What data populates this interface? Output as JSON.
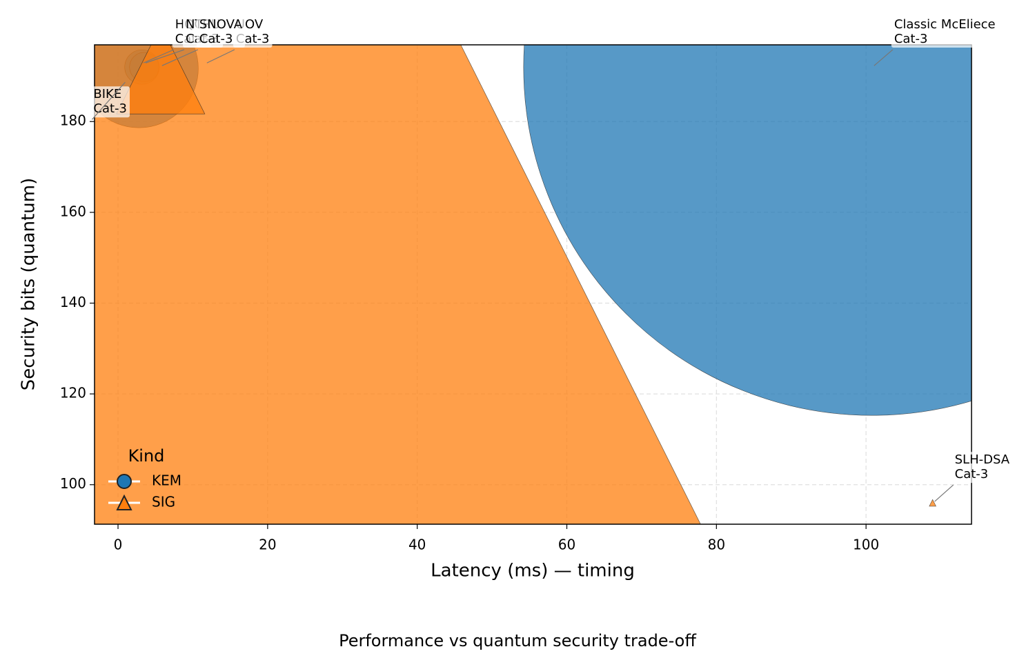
{
  "chart_data": {
    "type": "scatter",
    "title": "Performance vs quantum security trade-off",
    "xlabel": "Latency (ms) — timing",
    "ylabel": "Security bits (quantum)",
    "xlim": [
      -3.14,
      114.1
    ],
    "ylim": [
      91.3,
      196.9
    ],
    "xticks": [
      0,
      20,
      40,
      60,
      80,
      100
    ],
    "yticks": [
      100,
      120,
      140,
      160,
      180
    ],
    "grid": true,
    "legend": {
      "title": "Kind",
      "loc": "lower left"
    },
    "series": [
      {
        "name": "KEM",
        "color": "#1f77b4",
        "marker": "circle",
        "labels": [
          "Classic McEliece",
          "BIKE",
          "HQC",
          "NTRU"
        ],
        "sublabels": [
          "Cat-3",
          "Cat-3",
          "Cat-3",
          "Cat-3"
        ],
        "x": [
          100.8,
          2.8,
          3.2,
          3.5
        ],
        "values": [
          192,
          191.7,
          192,
          192
        ],
        "sizes": [
          524160,
          15200,
          1285,
          930
        ]
      },
      {
        "name": "SIG",
        "color": "#ff7f0e",
        "marker": "triangle",
        "labels": [
          "UOV",
          "SNOVA",
          "SLH-DSA"
        ],
        "sublabels": [
          "Cat-3",
          "Cat-3",
          "Cat-3"
        ],
        "x": [
          11.7,
          5.7,
          108.9
        ],
        "values": [
          192,
          191.4,
          96
        ],
        "sizes": [
          1225440,
          8420,
          48
        ]
      }
    ]
  }
}
